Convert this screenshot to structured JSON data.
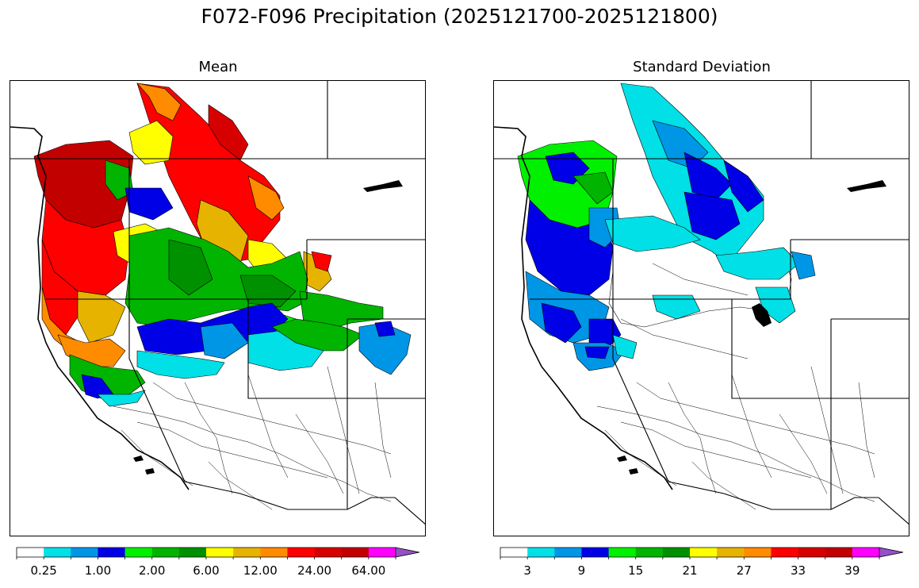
{
  "figure": {
    "title": "F072-F096 Precipitation (2025121700-2025121800)"
  },
  "panels": [
    {
      "title": "Mean",
      "colorbar": {
        "colors": [
          "#ffffff",
          "#00e0e6",
          "#0096e6",
          "#0000e6",
          "#00f000",
          "#00b400",
          "#009100",
          "#ffff00",
          "#e6b400",
          "#ff8c00",
          "#ff0000",
          "#d70000",
          "#c30000",
          "#ff00ff",
          "#9650c8"
        ],
        "ticks": [
          "0.25",
          "1.00",
          "2.00",
          "6.00",
          "12.00",
          "24.00",
          "64.00"
        ],
        "extend": "max"
      }
    },
    {
      "title": "Standard Deviation",
      "colorbar": {
        "colors": [
          "#ffffff",
          "#00e0e6",
          "#0096e6",
          "#0000e6",
          "#00f000",
          "#00b400",
          "#009100",
          "#ffff00",
          "#e6b400",
          "#ff8c00",
          "#ff0000",
          "#d70000",
          "#c30000",
          "#ff00ff",
          "#9650c8"
        ],
        "ticks": [
          "3",
          "9",
          "15",
          "21",
          "27",
          "33",
          "39"
        ],
        "extend": "max"
      }
    }
  ]
}
